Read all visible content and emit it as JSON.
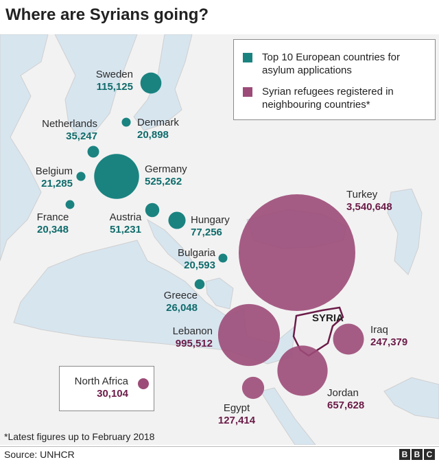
{
  "title": "Where are Syrians going?",
  "legend": {
    "europe": {
      "label": "Top 10 European countries for asylum applications",
      "color": "#1a8380"
    },
    "neighbours": {
      "label": "Syrian refugees registered in neighbouring countries*",
      "color": "#9c4b78"
    }
  },
  "europe": [
    {
      "name": "Sweden",
      "value": "115,125",
      "num": 115125
    },
    {
      "name": "Denmark",
      "value": "20,898",
      "num": 20898
    },
    {
      "name": "Netherlands",
      "value": "35,247",
      "num": 35247
    },
    {
      "name": "Belgium",
      "value": "21,285",
      "num": 21285
    },
    {
      "name": "Germany",
      "value": "525,262",
      "num": 525262
    },
    {
      "name": "France",
      "value": "20,348",
      "num": 20348
    },
    {
      "name": "Austria",
      "value": "51,231",
      "num": 51231
    },
    {
      "name": "Hungary",
      "value": "77,256",
      "num": 77256
    },
    {
      "name": "Bulgaria",
      "value": "20,593",
      "num": 20593
    },
    {
      "name": "Greece",
      "value": "26,048",
      "num": 26048
    }
  ],
  "neighbours": [
    {
      "name": "Turkey",
      "value": "3,540,648",
      "num": 3540648
    },
    {
      "name": "Lebanon",
      "value": "995,512",
      "num": 995512
    },
    {
      "name": "Iraq",
      "value": "247,379",
      "num": 247379
    },
    {
      "name": "Jordan",
      "value": "657,628",
      "num": 657628
    },
    {
      "name": "Egypt",
      "value": "127,414",
      "num": 127414
    },
    {
      "name": "North Africa",
      "value": "30,104",
      "num": 30104
    }
  ],
  "syria_label": "SYRIA",
  "footnote": "*Latest figures up to February 2018",
  "source": "Source: UNHCR",
  "logo": [
    "B",
    "B",
    "C"
  ],
  "colors": {
    "sea": "#d7e5ef",
    "land": "#f2f2f2",
    "border": "#cfcfcf"
  }
}
